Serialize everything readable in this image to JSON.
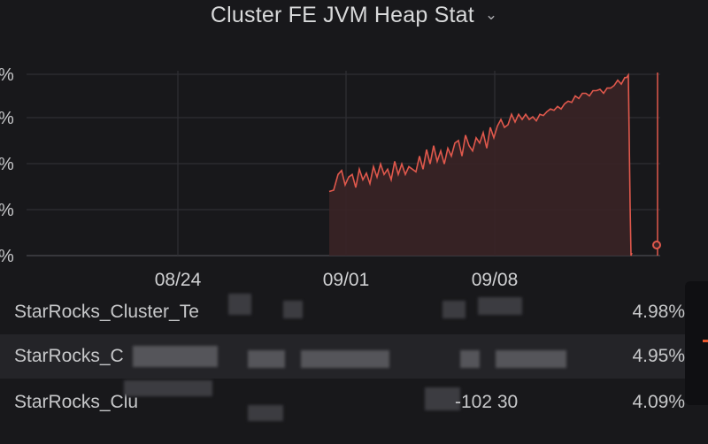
{
  "panel": {
    "title": "Cluster FE JVM Heap Stat",
    "chevron_glyph": "⌄"
  },
  "chart_data": {
    "type": "area",
    "color": "#e0584c",
    "fill": "#3a2426",
    "y_ticks": [
      "%",
      "%",
      "%",
      "%",
      "%"
    ],
    "x_ticks": [
      "08/24",
      "09/01",
      "09/08"
    ],
    "series": [
      {
        "values": [
          [
            0,
            49
          ],
          [
            5,
            50
          ],
          [
            10,
            62
          ],
          [
            14,
            65
          ],
          [
            18,
            54
          ],
          [
            22,
            60
          ],
          [
            26,
            62
          ],
          [
            30,
            52
          ],
          [
            34,
            66
          ],
          [
            38,
            58
          ],
          [
            42,
            63
          ],
          [
            46,
            55
          ],
          [
            50,
            68
          ],
          [
            54,
            60
          ],
          [
            58,
            70
          ],
          [
            62,
            62
          ],
          [
            66,
            66
          ],
          [
            70,
            58
          ],
          [
            74,
            72
          ],
          [
            78,
            62
          ],
          [
            82,
            70
          ],
          [
            86,
            62
          ],
          [
            90,
            68
          ],
          [
            94,
            66
          ],
          [
            98,
            64
          ],
          [
            102,
            76
          ],
          [
            106,
            66
          ],
          [
            110,
            81
          ],
          [
            114,
            70
          ],
          [
            118,
            84
          ],
          [
            122,
            72
          ],
          [
            126,
            80
          ],
          [
            130,
            70
          ],
          [
            134,
            82
          ],
          [
            138,
            76
          ],
          [
            142,
            86
          ],
          [
            146,
            88
          ],
          [
            150,
            76
          ],
          [
            154,
            92
          ],
          [
            158,
            84
          ],
          [
            162,
            80
          ],
          [
            166,
            90
          ],
          [
            170,
            86
          ],
          [
            174,
            94
          ],
          [
            178,
            82
          ],
          [
            182,
            98
          ],
          [
            186,
            90
          ],
          [
            190,
            99
          ],
          [
            194,
            104
          ],
          [
            198,
            98
          ],
          [
            202,
            100
          ],
          [
            206,
            108
          ],
          [
            210,
            102
          ],
          [
            214,
            108
          ],
          [
            218,
            104
          ],
          [
            222,
            108
          ],
          [
            226,
            104
          ],
          [
            230,
            106
          ],
          [
            234,
            103
          ],
          [
            238,
            108
          ],
          [
            242,
            107
          ],
          [
            246,
            110
          ],
          [
            250,
            112
          ],
          [
            254,
            111
          ],
          [
            258,
            114
          ],
          [
            262,
            112
          ],
          [
            266,
            116
          ],
          [
            270,
            118
          ],
          [
            274,
            117
          ],
          [
            278,
            122
          ],
          [
            282,
            120
          ],
          [
            286,
            124
          ],
          [
            290,
            124
          ],
          [
            294,
            122
          ],
          [
            298,
            126
          ],
          [
            302,
            126
          ],
          [
            306,
            127
          ],
          [
            310,
            124
          ],
          [
            314,
            128
          ],
          [
            318,
            128
          ],
          [
            322,
            130
          ],
          [
            326,
            134
          ],
          [
            330,
            131
          ],
          [
            334,
            136
          ],
          [
            336,
            136
          ],
          [
            338,
            138
          ],
          [
            340,
            38
          ],
          [
            341,
            0
          ],
          [
            342,
            2
          ]
        ]
      }
    ]
  },
  "legend": {
    "rows": [
      {
        "name": "StarRocks_Cluster_Te",
        "value": "4.98%"
      },
      {
        "name": "StarRocks_C",
        "value": "4.95%"
      },
      {
        "name": "StarRocks_Clu",
        "suffix": "-102 30",
        "value": "4.09%"
      }
    ]
  }
}
